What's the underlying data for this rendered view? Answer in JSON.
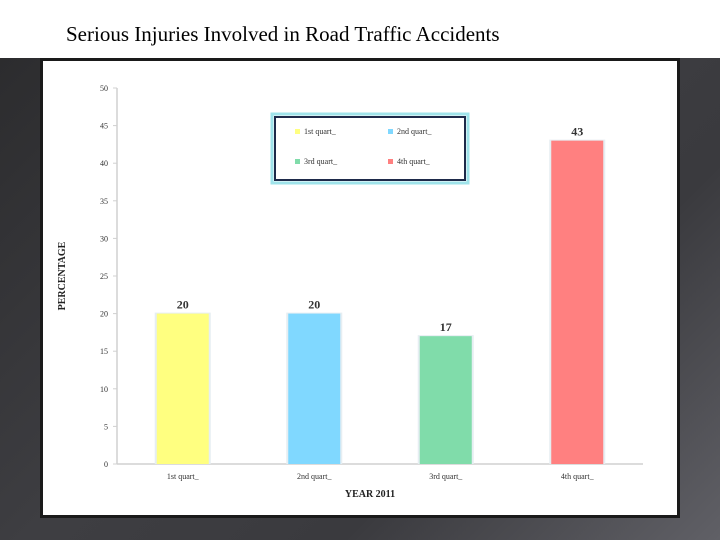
{
  "slide": {
    "title": "Serious Injuries Involved in Road Traffic Accidents"
  },
  "colors": {
    "background_dark": "#3a3a3e",
    "frame_border": "#1a1a1a",
    "legend_border": "#1e2a4a",
    "legend_glow": "#9fe3ea"
  },
  "chart_data": {
    "type": "bar",
    "categories": [
      "1st quart_",
      "2nd quart_",
      "3rd quart_",
      "4th quart_"
    ],
    "values": [
      20,
      20,
      17,
      43
    ],
    "data_labels": [
      "20",
      "20",
      "17",
      "43"
    ],
    "colors": [
      "#ffff80",
      "#80d8ff",
      "#80dcaa",
      "#ff8080"
    ],
    "xlabel": "YEAR 2011",
    "ylabel": "PERCENTAGE",
    "ylim": [
      0,
      50
    ],
    "yticks": [
      "0",
      "5",
      "10",
      "15",
      "20",
      "25",
      "30",
      "35",
      "40",
      "45",
      "50"
    ],
    "grid": false,
    "legend": {
      "placement": "top-center",
      "entries": [
        "1st quart_",
        "2nd quart_",
        "3rd quart_",
        "4th quart_"
      ]
    }
  }
}
